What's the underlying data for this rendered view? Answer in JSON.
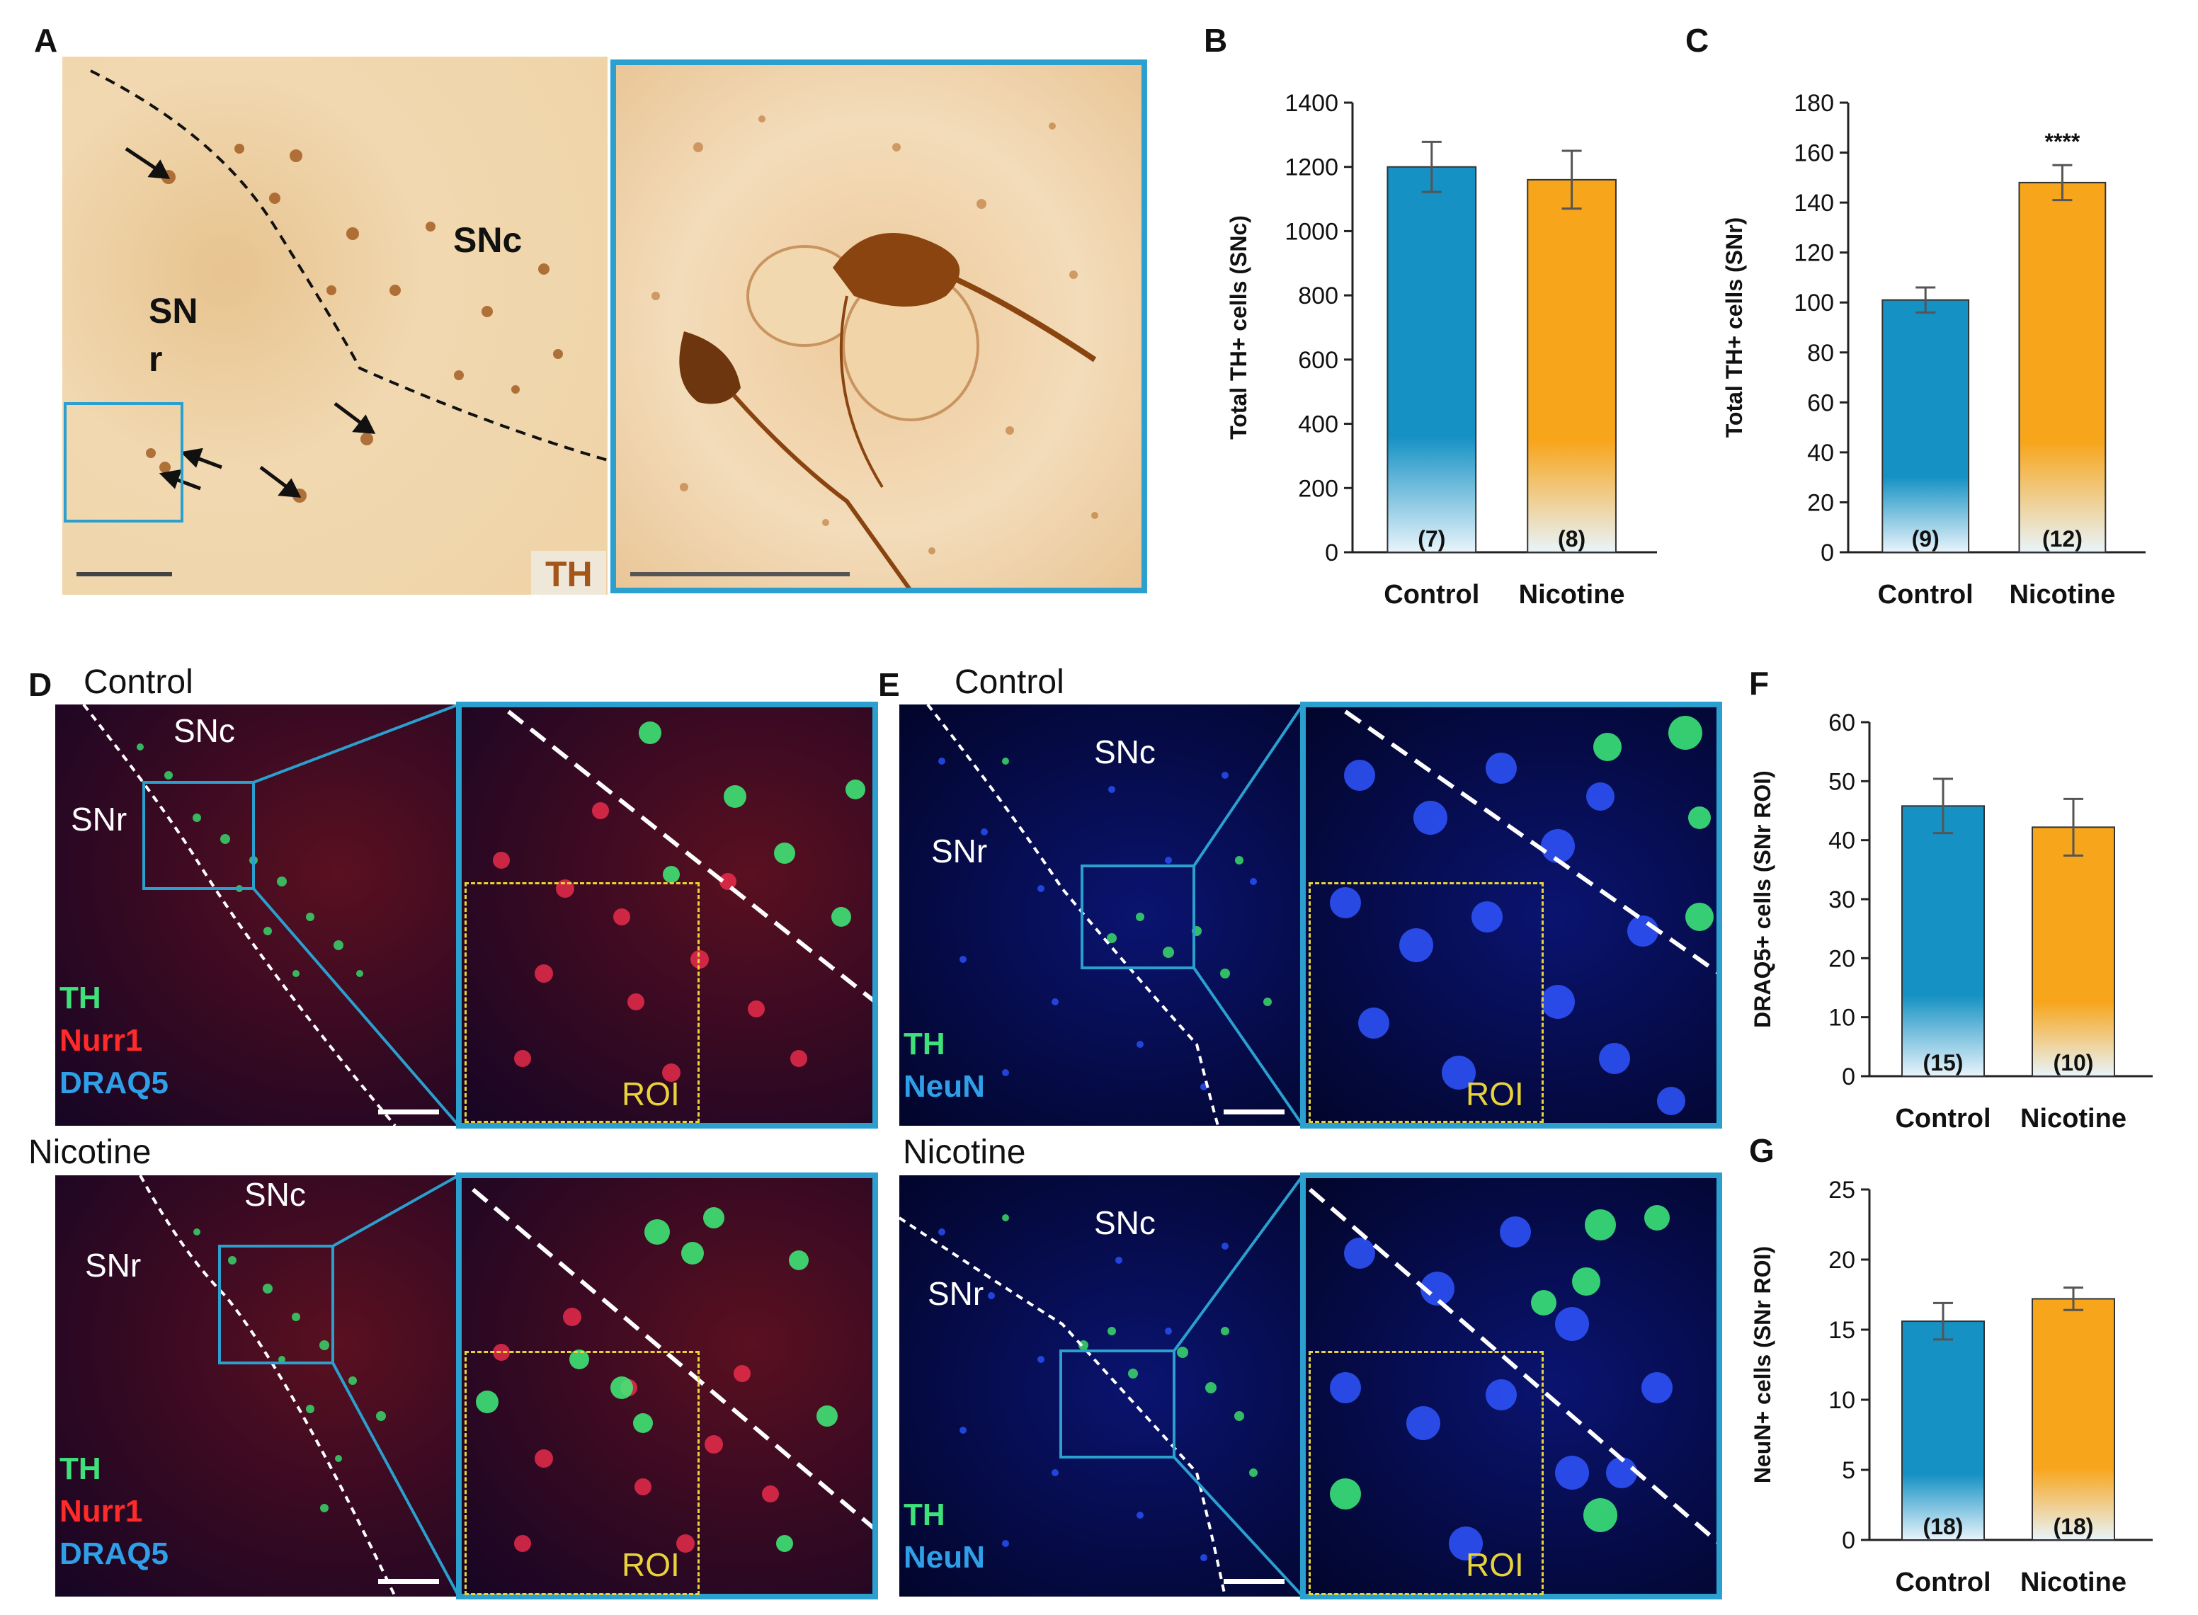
{
  "panels": {
    "A": {
      "letter": "A",
      "snc": "SNc",
      "snr_line1": "SN",
      "snr_line2": "r",
      "stain": "TH"
    },
    "B": {
      "letter": "B"
    },
    "C": {
      "letter": "C"
    },
    "D": {
      "letter": "D",
      "top_caption": "Control",
      "bottom_caption": "Nicotine",
      "snc": "SNc",
      "snr": "SNr",
      "legend": [
        "TH",
        "Nurr1",
        "DRAQ5"
      ],
      "roi": "ROI"
    },
    "E": {
      "letter": "E",
      "top_caption": "Control",
      "bottom_caption": "Nicotine",
      "snc": "SNc",
      "snr": "SNr",
      "legend": [
        "TH",
        "NeuN"
      ],
      "roi": "ROI"
    },
    "F": {
      "letter": "F"
    },
    "G": {
      "letter": "G"
    }
  },
  "colors": {
    "control": "#1591c4",
    "nicotine": "#f7a51a",
    "frame": "#2ba0cf",
    "roi": "#e8d43a",
    "th": "#3fe27a",
    "nurr1": "#ff2a2a",
    "draq5": "#2f9fe8",
    "neun": "#2f9fe8"
  },
  "chart_data": [
    {
      "id": "B",
      "type": "bar",
      "categories": [
        "Control",
        "Nicotine"
      ],
      "values": [
        1200,
        1160
      ],
      "errors": [
        78,
        90
      ],
      "n_labels": [
        "(7)",
        "(8)"
      ],
      "ylabel": "Total TH+ cells (SNc)",
      "ylim": [
        0,
        1400
      ],
      "yticks": [
        0,
        200,
        400,
        600,
        800,
        1000,
        1200,
        1400
      ],
      "annotation": ""
    },
    {
      "id": "C",
      "type": "bar",
      "categories": [
        "Control",
        "Nicotine"
      ],
      "values": [
        101,
        148
      ],
      "errors": [
        5,
        7
      ],
      "n_labels": [
        "(9)",
        "(12)"
      ],
      "ylabel": "Total TH+ cells (SNr)",
      "ylim": [
        0,
        180
      ],
      "yticks": [
        0,
        20,
        40,
        60,
        80,
        100,
        120,
        140,
        160,
        180
      ],
      "annotation": "****"
    },
    {
      "id": "F",
      "type": "bar",
      "categories": [
        "Control",
        "Nicotine"
      ],
      "values": [
        45.8,
        42.2
      ],
      "errors": [
        4.6,
        4.8
      ],
      "n_labels": [
        "(15)",
        "(10)"
      ],
      "ylabel": "DRAQ5+ cells (SNr ROI)",
      "ylim": [
        0,
        60
      ],
      "yticks": [
        0,
        10,
        20,
        30,
        40,
        50,
        60
      ],
      "annotation": ""
    },
    {
      "id": "G",
      "type": "bar",
      "categories": [
        "Control",
        "Nicotine"
      ],
      "values": [
        15.6,
        17.2
      ],
      "errors": [
        1.3,
        0.8
      ],
      "n_labels": [
        "(18)",
        "(18)"
      ],
      "ylabel": "NeuN+ cells (SNr ROI)",
      "ylim": [
        0,
        25
      ],
      "yticks": [
        0,
        5,
        10,
        15,
        20,
        25
      ],
      "annotation": ""
    }
  ]
}
